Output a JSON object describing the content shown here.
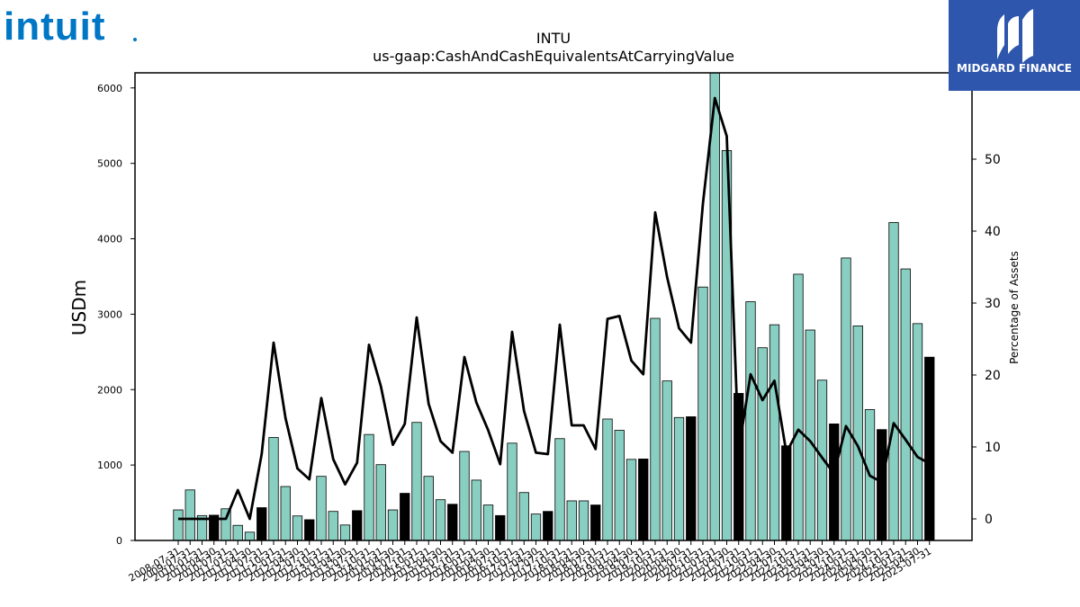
{
  "logos": {
    "left": "intuit",
    "right": "MIDGARD FINANCE"
  },
  "colors": {
    "bar_regular": "#88cfc1",
    "bar_highlight": "#000000",
    "line": "#000000",
    "logo_left": "#0077c5",
    "logo_right_bg": "#2f56ad"
  },
  "chart_data": {
    "type": "bar",
    "title": "INTU",
    "subtitle": "us-gaap:CashAndCashEquivalentsAtCarryingValue",
    "ylabel": "USDm",
    "y2label": "Percentage of Assets",
    "ylim": [
      0,
      6200
    ],
    "y2lim": [
      -3,
      62
    ],
    "yticks": [
      0,
      1000,
      2000,
      3000,
      4000,
      5000,
      6000
    ],
    "y2ticks": [
      0,
      10,
      20,
      30,
      40,
      50
    ],
    "xtick_labels": [
      "2008-07-31",
      "2009-07-31",
      "2010-01-31",
      "2010-04-30",
      "2010-07-31",
      "2011-01-31",
      "2011-04-30",
      "2011-07-31",
      "2011-10-31",
      "2012-01-31",
      "2012-04-30",
      "2012-07-31",
      "2012-10-31",
      "2013-01-31",
      "2013-04-30",
      "2013-07-31",
      "2013-10-31",
      "2014-01-31",
      "2014-04-30",
      "2014-07-31",
      "2014-10-31",
      "2015-01-31",
      "2015-04-30",
      "2015-07-31",
      "2015-10-31",
      "2016-01-31",
      "2016-04-30",
      "2016-07-31",
      "2016-10-31",
      "2017-01-31",
      "2017-04-30",
      "2017-07-31",
      "2017-10-31",
      "2018-01-31",
      "2018-04-30",
      "2018-07-31",
      "2018-10-31",
      "2019-01-31",
      "2019-04-30",
      "2019-07-31",
      "2019-10-31",
      "2020-01-31",
      "2020-04-30",
      "2020-07-31",
      "2020-10-31",
      "2021-01-31",
      "2021-04-30",
      "2021-07-31",
      "2021-10-31",
      "2022-01-31",
      "2022-04-30",
      "2022-07-31",
      "2022-10-31",
      "2023-01-31",
      "2023-04-30",
      "2023-07-31",
      "2023-10-31",
      "2024-01-31",
      "2024-04-30",
      "2024-07-31",
      "2024-10-31",
      "2025-01-31",
      "2025-04-30",
      "2025-07-31"
    ],
    "values": [
      405,
      670,
      330,
      335,
      420,
      200,
      110,
      435,
      1365,
      715,
      325,
      275,
      850,
      385,
      205,
      395,
      1405,
      1005,
      405,
      625,
      1565,
      850,
      540,
      480,
      1180,
      800,
      470,
      330,
      1290,
      635,
      350,
      385,
      1350,
      525,
      525,
      470,
      1610,
      1460,
      1075,
      1080,
      2945,
      2115,
      1630,
      1640,
      3360,
      6200,
      5170,
      1950,
      3165,
      2555,
      2860,
      1255,
      3530,
      2790,
      2125,
      1545,
      3745,
      2845,
      1735,
      1470,
      4215,
      3600,
      2875,
      2430
    ],
    "highlight": [
      false,
      false,
      false,
      true,
      false,
      false,
      false,
      true,
      false,
      false,
      false,
      true,
      false,
      false,
      false,
      true,
      false,
      false,
      false,
      true,
      false,
      false,
      false,
      true,
      false,
      false,
      false,
      true,
      false,
      false,
      false,
      true,
      false,
      false,
      false,
      true,
      false,
      false,
      false,
      true,
      false,
      false,
      false,
      true,
      false,
      false,
      false,
      true,
      false,
      false,
      false,
      true,
      false,
      false,
      false,
      true,
      false,
      false,
      false,
      true,
      false,
      false,
      false,
      true
    ],
    "pct_assets": [
      0,
      0,
      0,
      0,
      0,
      4,
      0,
      9,
      24.5,
      14,
      7,
      5.5,
      16.8,
      8.3,
      4.8,
      7.8,
      24.2,
      18.4,
      10.3,
      13.2,
      28,
      16,
      10.8,
      9.2,
      22.5,
      16.2,
      12.3,
      7.6,
      26,
      15,
      9.2,
      9,
      27,
      13,
      13,
      9.7,
      27.8,
      28.2,
      22,
      20.1,
      42.6,
      33.6,
      26.5,
      24.5,
      43.8,
      58.5,
      53.2,
      9.5,
      20.1,
      16.5,
      19.2,
      9.2,
      12.4,
      10.8,
      8.5,
      6.3,
      12.9,
      10.1,
      6,
      5.1,
      13.3,
      11,
      8.6,
      7.7
    ]
  }
}
